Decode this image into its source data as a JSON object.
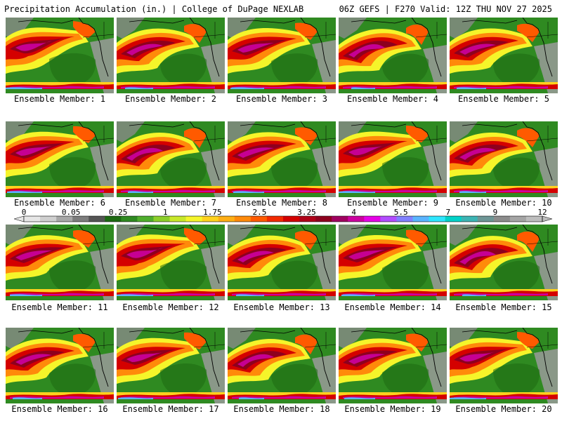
{
  "header": {
    "left": "Precipitation Accumulation (in.) | College of DuPage NEXLAB",
    "right": "06Z GEFS | F270 Valid: 12Z THU NOV 27 2025"
  },
  "members": [
    "Ensemble Member: 1",
    "Ensemble Member: 2",
    "Ensemble Member: 3",
    "Ensemble Member: 4",
    "Ensemble Member: 5",
    "Ensemble Member: 6",
    "Ensemble Member: 7",
    "Ensemble Member: 8",
    "Ensemble Member: 9",
    "Ensemble Member: 10",
    "Ensemble Member: 11",
    "Ensemble Member: 12",
    "Ensemble Member: 13",
    "Ensemble Member: 14",
    "Ensemble Member: 15",
    "Ensemble Member: 16",
    "Ensemble Member: 17",
    "Ensemble Member: 18",
    "Ensemble Member: 19",
    "Ensemble Member: 20"
  ],
  "colorbar": {
    "labels": [
      "0",
      "0.05",
      "0.25",
      "1",
      "1.75",
      "2.5",
      "3.25",
      "4",
      "5.5",
      "7",
      "9",
      "12"
    ],
    "colors": [
      "#e6e6e6",
      "#cfcfcf",
      "#a8a8a8",
      "#7d7d7d",
      "#545454",
      "#1d6a12",
      "#2f8a21",
      "#4fae2d",
      "#8ccf2a",
      "#c8e82a",
      "#f5f52a",
      "#ffd21e",
      "#ffae14",
      "#ff8a0a",
      "#ff5a00",
      "#f22a00",
      "#d40000",
      "#b00018",
      "#8e001e",
      "#a00060",
      "#cc00a0",
      "#e600e6",
      "#b24dff",
      "#8080ff",
      "#5ab4ff",
      "#2ee6ff",
      "#00d2c8",
      "#3cb4b4",
      "#6e9696",
      "#8c8c8c",
      "#a5a5a5",
      "#bdbdbd"
    ]
  }
}
